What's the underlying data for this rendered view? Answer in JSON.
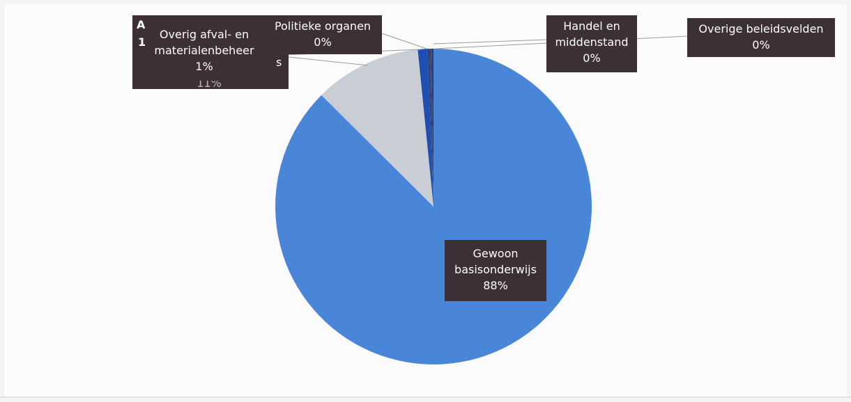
{
  "chart_data": {
    "type": "pie",
    "slices": [
      {
        "name": "Gewoon basisonderwijs",
        "value": 88,
        "label": "88%",
        "color": "#4a86d8"
      },
      {
        "name": "Afval",
        "value": 11,
        "label": "11%",
        "color": "#c9ced6"
      },
      {
        "name": "Overig afval- en materialenbeheer",
        "value": 1,
        "label": "1%",
        "color": "#1f4fb3"
      },
      {
        "name": "Politieke organen",
        "value": 0,
        "label": "0%",
        "color": "#2e3f73"
      },
      {
        "name": "Handel en middenstand",
        "value": 0,
        "label": "0%",
        "color": "#3b4a66"
      },
      {
        "name": "Overige beleidsvelden",
        "value": 0,
        "label": "0%",
        "color": "#2a3a8a"
      }
    ]
  },
  "labels": {
    "gewoon": {
      "line1": "Gewoon",
      "line2": "basisonderwijs",
      "pct": "88%"
    },
    "overig_afval": {
      "line1": "Overig afval- en",
      "line2": "materialenbeheer",
      "pct": "1%"
    },
    "politieke": {
      "line1": "Politieke organen",
      "pct": "0%"
    },
    "handel": {
      "line1": "Handel en",
      "line2": "middenstand",
      "pct": "0%"
    },
    "overige": {
      "line1": "Overige beleidsvelden",
      "pct": "0%"
    },
    "hidden_back": {
      "frag1": "A",
      "frag2": "1",
      "frag3": "s",
      "pct": "11%"
    }
  }
}
